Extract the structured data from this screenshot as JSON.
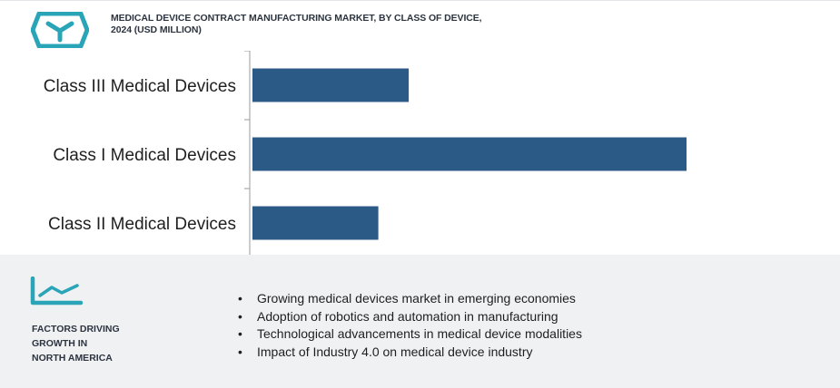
{
  "header": {
    "title": "MEDICAL DEVICE CONTRACT MANUFACTURING MARKET, BY CLASS OF DEVICE, 2024 (USD MILLION)",
    "logo_icon": "box-logo-icon",
    "logo_color": "#2aa5b8"
  },
  "chart_data": {
    "type": "bar",
    "orientation": "horizontal",
    "title": "MEDICAL DEVICE CONTRACT MANUFACTURING MARKET, BY CLASS OF DEVICE, 2024 (USD MILLION)",
    "categories": [
      "Class III Medical Devices",
      "Class I Medical Devices",
      "Class II Medical Devices"
    ],
    "values": [
      36,
      100,
      29
    ],
    "xlabel": "",
    "ylabel": "",
    "xlim": [
      0,
      100
    ],
    "value_axis_visible": false,
    "grid": false,
    "legend": "none",
    "bar_color": "#2c5a86"
  },
  "footer": {
    "icon": "trend-line-icon",
    "icon_color": "#2aa5b8",
    "label": "FACTORS DRIVING\nGROWTH IN\nNORTH AMERICA",
    "bullet_glyph": "•",
    "factors": [
      "Growing medical devices market in emerging economies",
      "Adoption of robotics and automation in manufacturing",
      "Technological advancements in medical device modalities",
      "Impact of Industry 4.0 on medical device industry"
    ]
  }
}
